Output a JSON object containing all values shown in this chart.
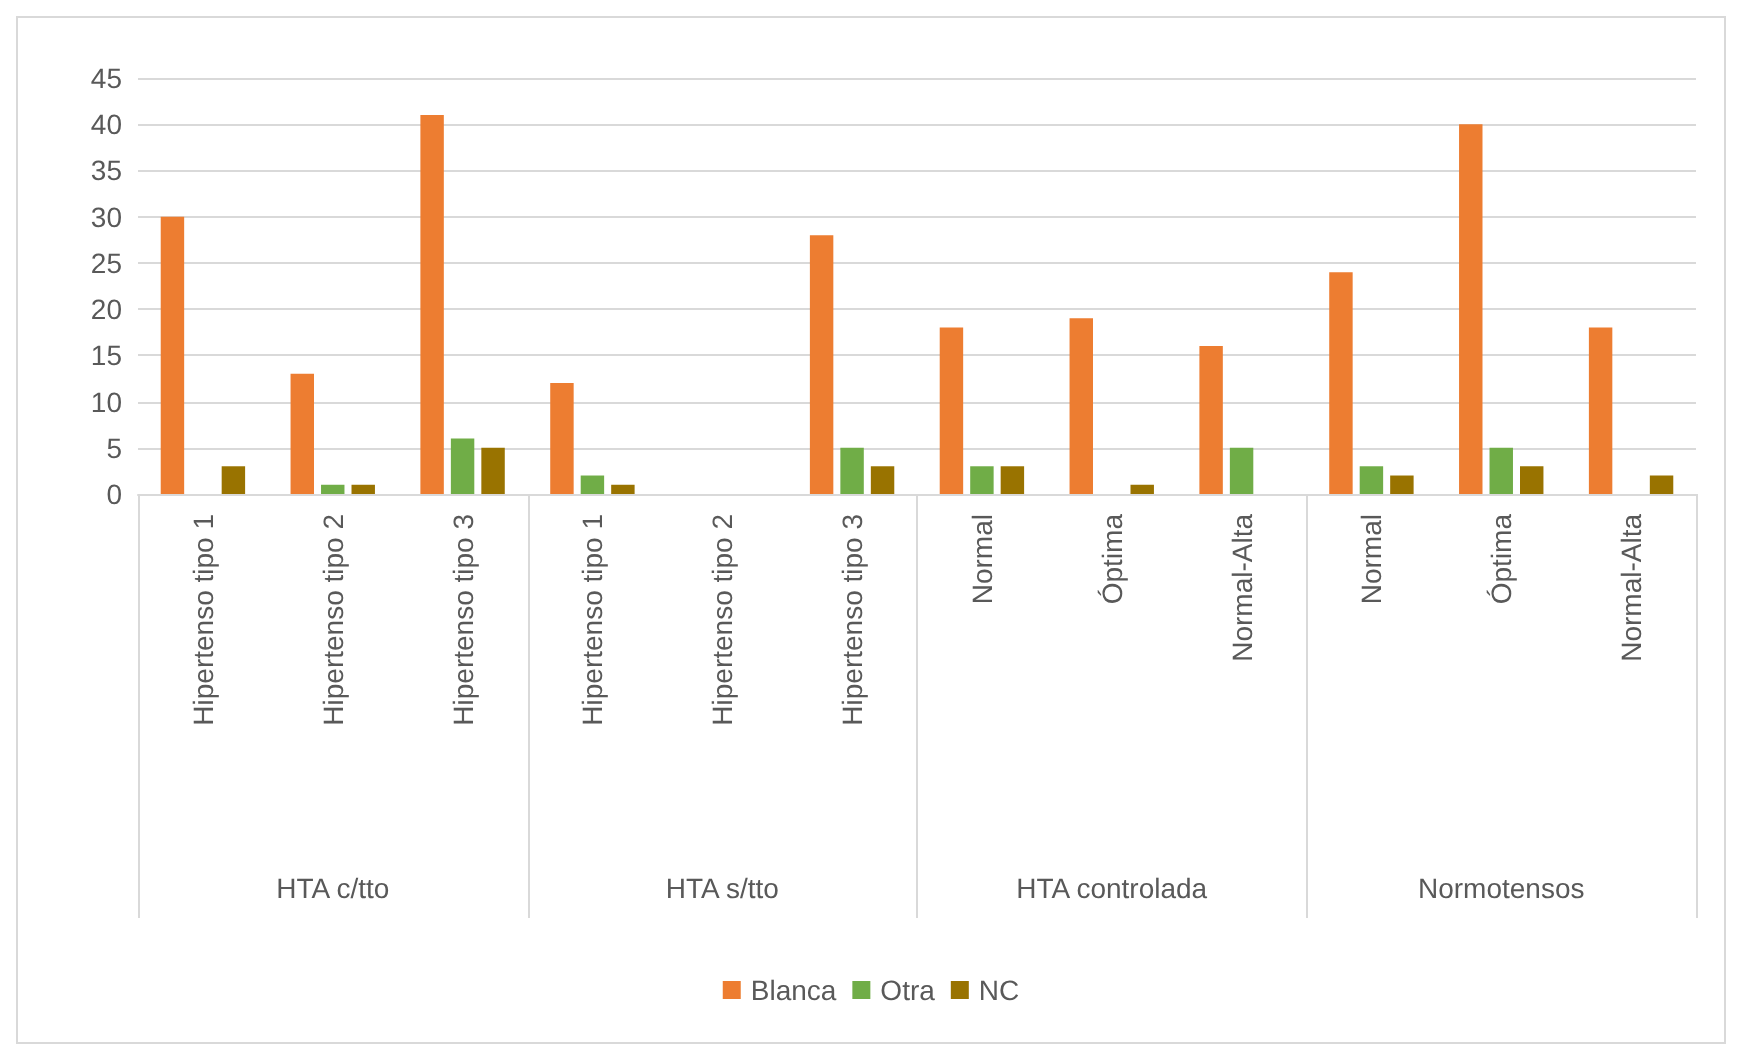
{
  "chart_data": {
    "type": "bar",
    "categories": [
      "Hipertenso tipo 1",
      "Hipertenso tipo 2",
      "Hipertenso tipo 3",
      "Hipertenso tipo 1",
      "Hipertenso tipo 2",
      "Hipertenso tipo 3",
      "Normal",
      "Óptima",
      "Normal-Alta",
      "Normal",
      "Óptima",
      "Normal-Alta"
    ],
    "series": [
      {
        "name": "Blanca",
        "color": "#ed7d31",
        "values": [
          30,
          13,
          41,
          12,
          null,
          28,
          18,
          19,
          16,
          24,
          40,
          18
        ]
      },
      {
        "name": "Otra",
        "color": "#70ad47",
        "values": [
          null,
          1,
          6,
          2,
          null,
          5,
          3,
          null,
          5,
          3,
          5,
          null
        ]
      },
      {
        "name": "NC",
        "color": "#997300",
        "values": [
          3,
          1,
          5,
          1,
          null,
          3,
          3,
          1,
          null,
          2,
          3,
          2
        ]
      }
    ],
    "annotations": [
      "HTA c/tto",
      "HTA s/tto",
      "HTA controlada",
      "Normotensos"
    ],
    "ylim": [
      0,
      45
    ],
    "yticks": [
      0,
      5,
      10,
      15,
      20,
      25,
      30,
      35,
      40,
      45
    ],
    "grid": "y",
    "legend": "bottom"
  }
}
